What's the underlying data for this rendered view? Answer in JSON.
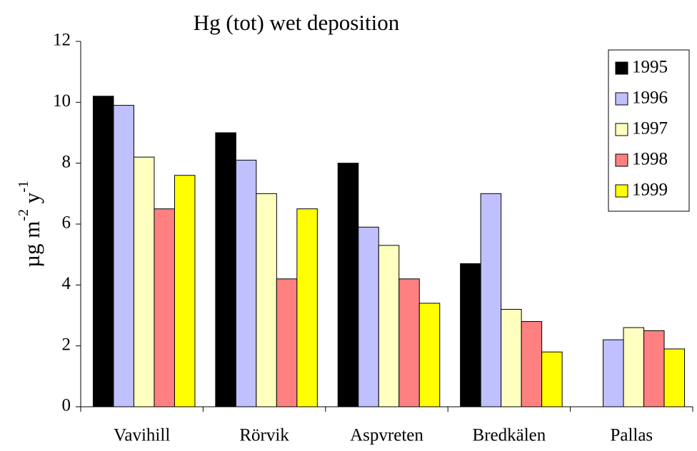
{
  "chart_data": {
    "type": "bar",
    "title": "Hg (tot) wet deposition",
    "y_label": [
      "µg m",
      "-2",
      " y",
      "-1"
    ],
    "categories": [
      "Vavihill",
      "Rörvik",
      "Aspvreten",
      "Bredkälen",
      "Pallas"
    ],
    "series": [
      {
        "name": "1995",
        "color": "#000000",
        "values": [
          10.2,
          9.0,
          8.0,
          4.7,
          null
        ]
      },
      {
        "name": "1996",
        "color": "#c0c0ff",
        "values": [
          9.9,
          8.1,
          5.9,
          7.0,
          2.2
        ]
      },
      {
        "name": "1997",
        "color": "#ffffc0",
        "values": [
          8.2,
          7.0,
          5.3,
          3.2,
          2.6
        ]
      },
      {
        "name": "1998",
        "color": "#ff8080",
        "values": [
          6.5,
          4.2,
          4.2,
          2.8,
          2.5
        ]
      },
      {
        "name": "1999",
        "color": "#ffff00",
        "values": [
          7.6,
          6.5,
          3.4,
          1.8,
          1.9
        ]
      }
    ],
    "ylim": [
      0,
      12
    ],
    "yticks": [
      0,
      2,
      4,
      6,
      8,
      10,
      12
    ],
    "grid": false,
    "legend": "top-right"
  }
}
